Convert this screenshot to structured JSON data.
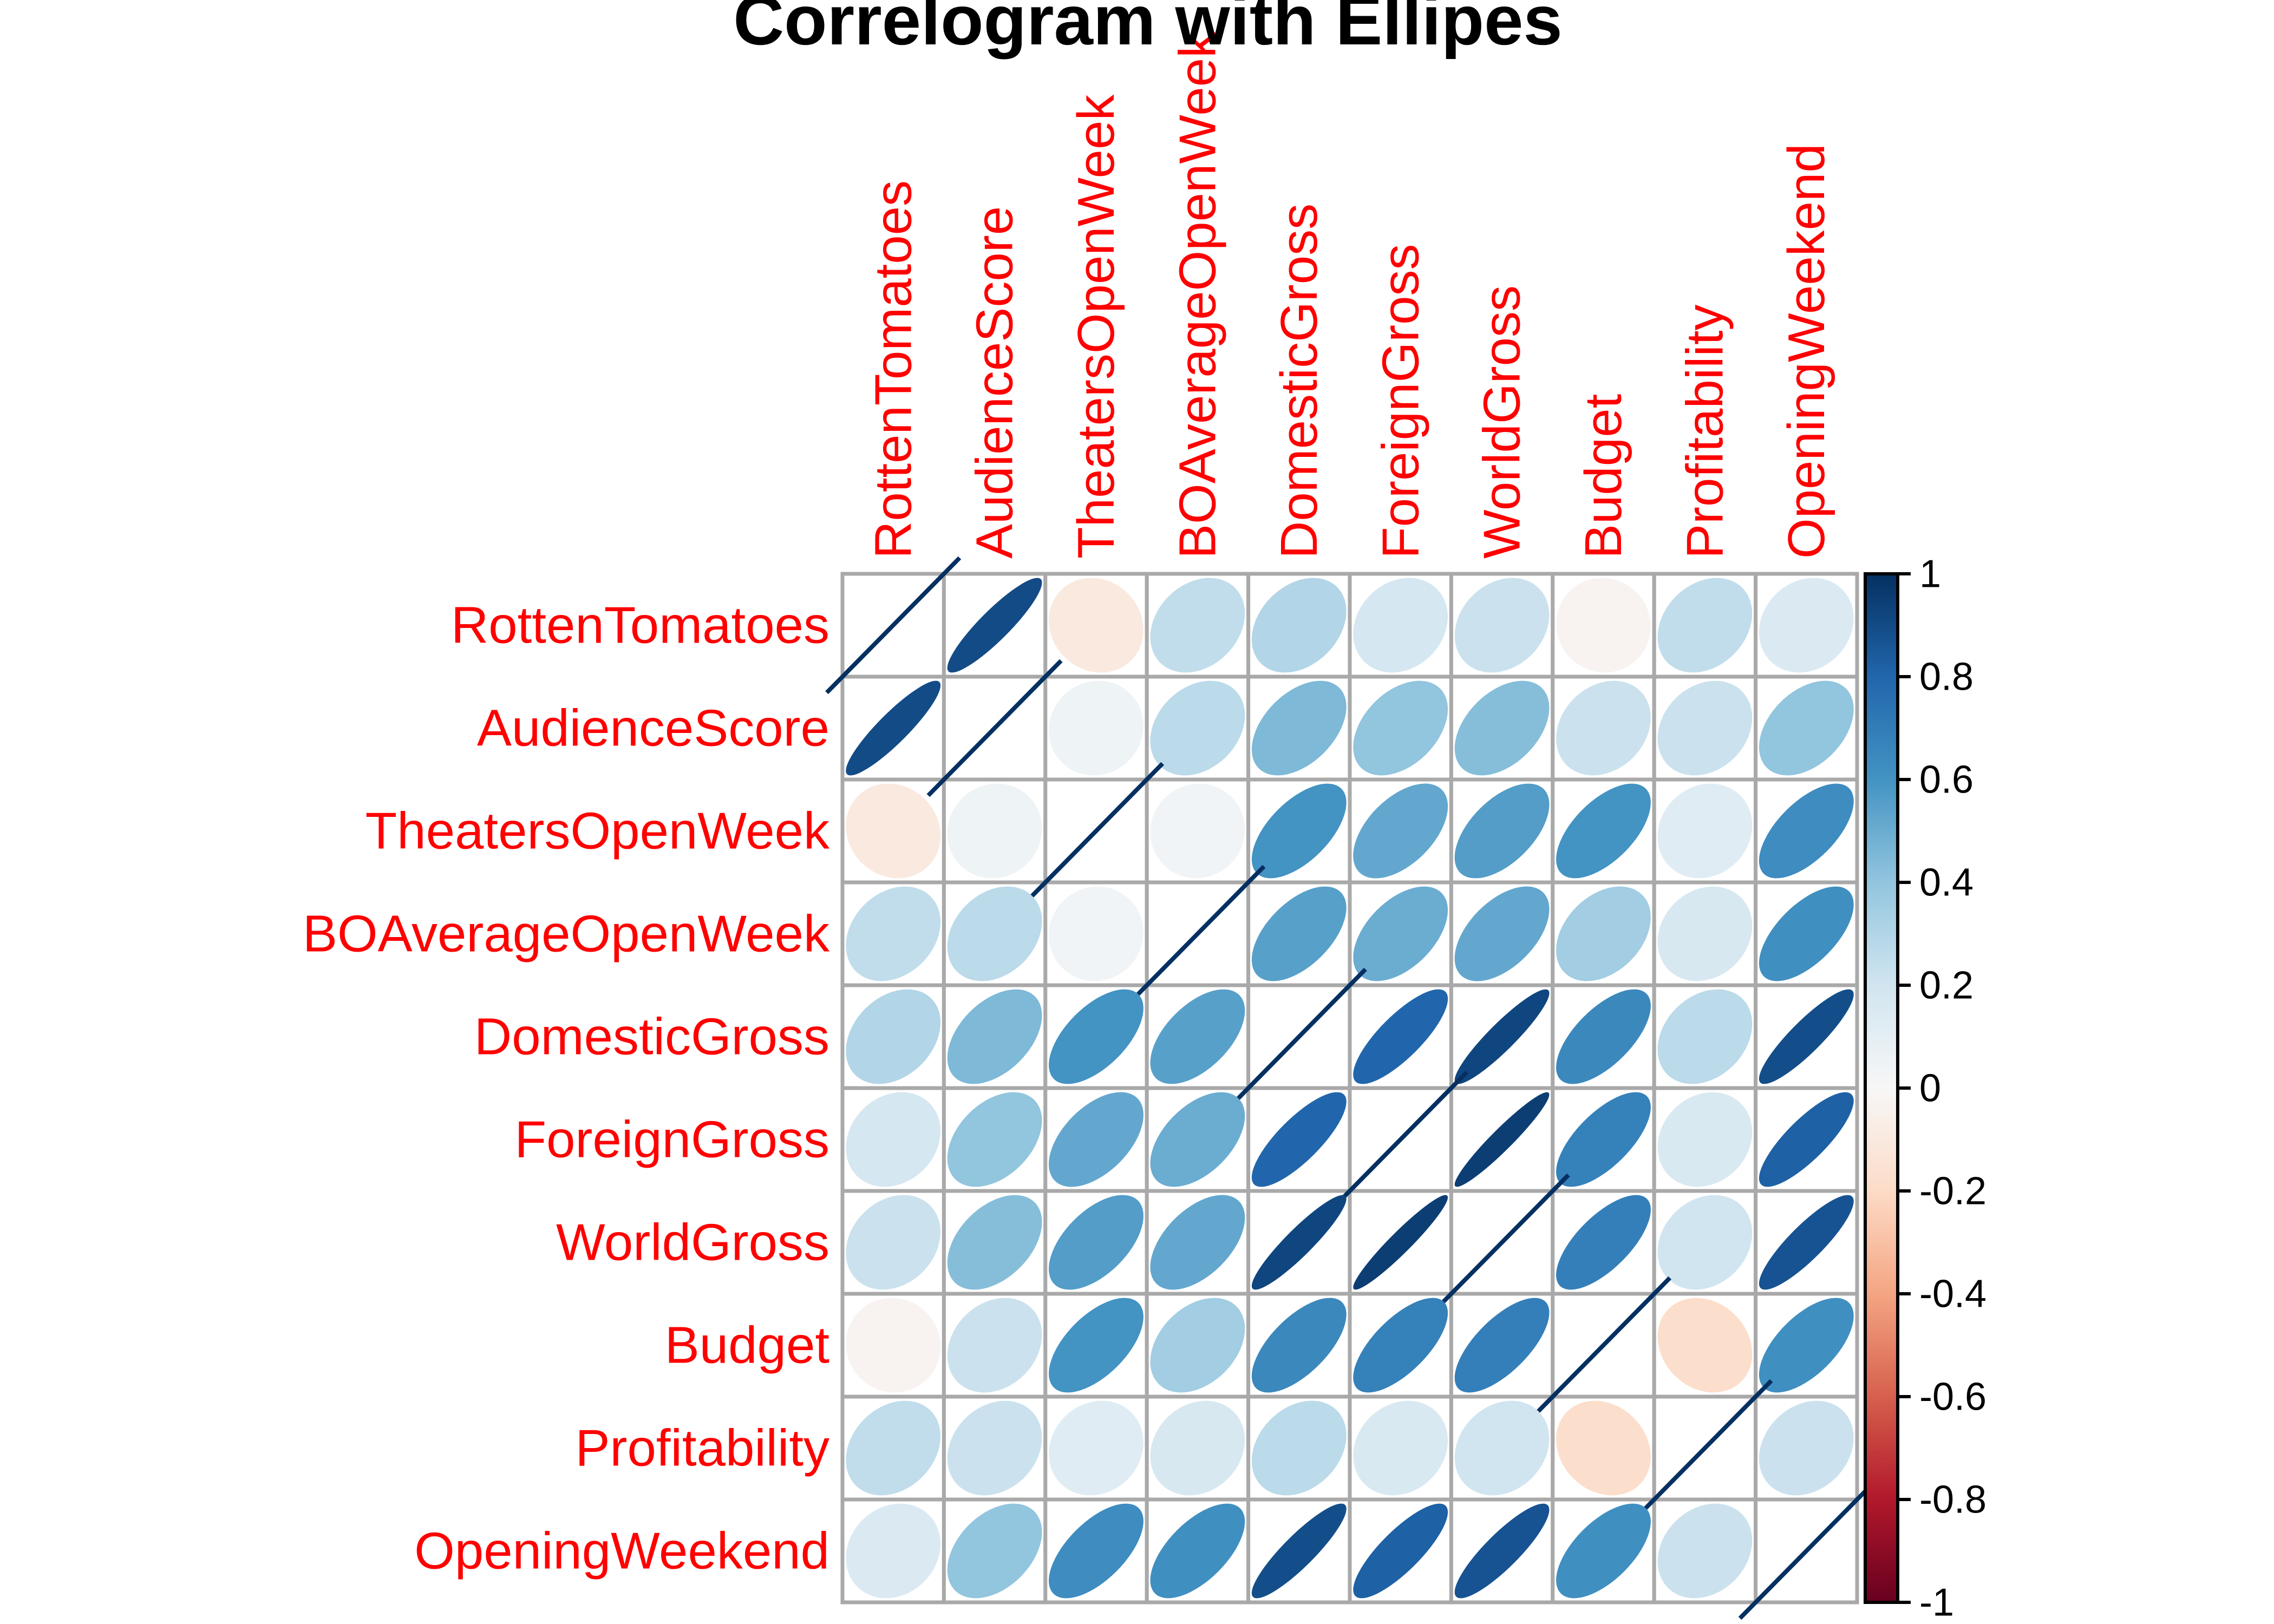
{
  "title": "Correlogram with Ellipes",
  "chart_data": {
    "type": "heatmap",
    "subtype": "correlogram-ellipse",
    "title": "Correlogram with Ellipes",
    "variables": [
      "RottenTomatoes",
      "AudienceScore",
      "TheatersOpenWeek",
      "BOAverageOpenWeek",
      "DomesticGross",
      "ForeignGross",
      "WorldGross",
      "Budget",
      "Profitability",
      "OpeningWeekend"
    ],
    "matrix": [
      [
        1.0,
        0.9,
        -0.1,
        0.25,
        0.3,
        0.18,
        0.22,
        -0.03,
        0.25,
        0.15
      ],
      [
        0.9,
        1.0,
        0.05,
        0.27,
        0.45,
        0.4,
        0.43,
        0.22,
        0.22,
        0.4
      ],
      [
        -0.1,
        0.05,
        1.0,
        0.03,
        0.6,
        0.52,
        0.56,
        0.6,
        0.12,
        0.63
      ],
      [
        0.25,
        0.27,
        0.03,
        1.0,
        0.55,
        0.5,
        0.52,
        0.35,
        0.17,
        0.62
      ],
      [
        0.3,
        0.45,
        0.6,
        0.55,
        1.0,
        0.8,
        0.92,
        0.65,
        0.27,
        0.89
      ],
      [
        0.18,
        0.4,
        0.52,
        0.5,
        0.8,
        1.0,
        0.95,
        0.68,
        0.16,
        0.82
      ],
      [
        0.22,
        0.43,
        0.56,
        0.52,
        0.92,
        0.95,
        1.0,
        0.69,
        0.2,
        0.87
      ],
      [
        -0.03,
        0.22,
        0.6,
        0.35,
        0.65,
        0.68,
        0.69,
        1.0,
        -0.18,
        0.62
      ],
      [
        0.25,
        0.22,
        0.12,
        0.17,
        0.27,
        0.16,
        0.2,
        -0.18,
        1.0,
        0.22
      ],
      [
        0.15,
        0.4,
        0.63,
        0.62,
        0.89,
        0.82,
        0.87,
        0.62,
        0.22,
        1.0
      ]
    ],
    "legend_position": "right",
    "grid": true,
    "colorbar": {
      "min": -1,
      "max": 1,
      "ticks": [
        1,
        0.8,
        0.6,
        0.4,
        0.2,
        0,
        -0.2,
        -0.4,
        -0.6,
        -0.8,
        -1
      ],
      "palette": [
        {
          "value": 1.0,
          "color": "#053061"
        },
        {
          "value": 0.8,
          "color": "#2166AC"
        },
        {
          "value": 0.6,
          "color": "#4393C3"
        },
        {
          "value": 0.4,
          "color": "#92C5DE"
        },
        {
          "value": 0.2,
          "color": "#D1E5F0"
        },
        {
          "value": 0.0,
          "color": "#F7F7F7"
        },
        {
          "value": -0.2,
          "color": "#FDDBC7"
        },
        {
          "value": -0.4,
          "color": "#F4A582"
        },
        {
          "value": -0.6,
          "color": "#D6604D"
        },
        {
          "value": -0.8,
          "color": "#B2182B"
        },
        {
          "value": -1.0,
          "color": "#67001F"
        }
      ]
    },
    "colors": {
      "label_color": "#FF0000",
      "title_color": "#000000",
      "grid_color": "#A9A9A9",
      "diag_line_color": "#053061",
      "tick_label_color": "#000000",
      "background": "#FFFFFF"
    }
  }
}
